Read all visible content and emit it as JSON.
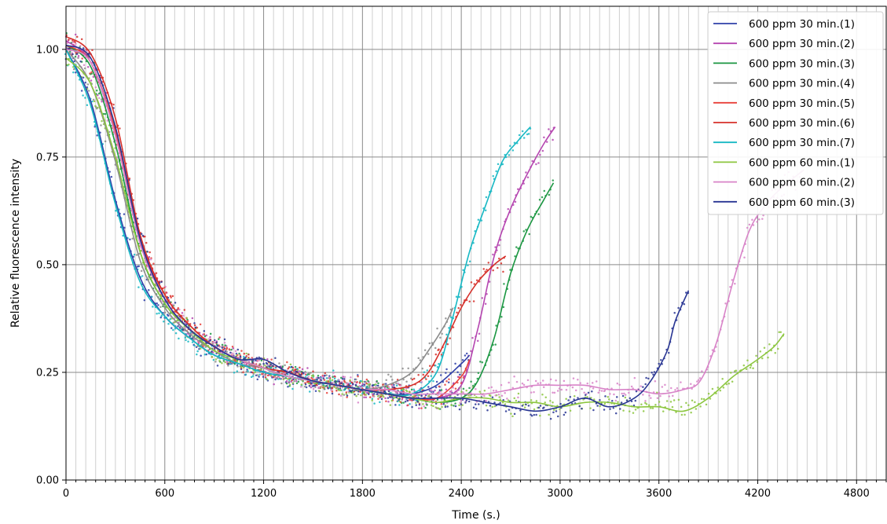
{
  "chart_data": {
    "type": "scatter",
    "xlabel": "Time (s.)",
    "ylabel": "Relative fluorescence intensity",
    "xlim": [
      0,
      4980
    ],
    "ylim": [
      0,
      1.1
    ],
    "x_ticks": [
      0,
      600,
      1200,
      1800,
      2400,
      3000,
      3600,
      4200,
      4800
    ],
    "x_tick_labels": [
      "0",
      "600",
      "1200",
      "1800",
      "2400",
      "3000",
      "3600",
      "4200",
      "4800"
    ],
    "y_ticks": [
      0,
      0.25,
      0.5,
      0.75,
      1.0
    ],
    "y_tick_labels": [
      "0.00",
      "0.25",
      "0.50",
      "0.75",
      "1.00"
    ],
    "x_minor_step": 60,
    "grid": true,
    "legend_position": "top-right",
    "series": [
      {
        "name": "600 ppm 30 min.(1)",
        "color": "#2f3fa8",
        "end_time": 2450,
        "x": [
          0,
          150,
          300,
          450,
          600,
          750,
          900,
          1050,
          1200,
          1350,
          1500,
          1650,
          1800,
          1950,
          2100,
          2250,
          2400,
          2450
        ],
        "y": [
          1.0,
          0.88,
          0.65,
          0.47,
          0.38,
          0.33,
          0.29,
          0.27,
          0.25,
          0.24,
          0.23,
          0.22,
          0.21,
          0.2,
          0.2,
          0.22,
          0.27,
          0.29
        ]
      },
      {
        "name": "600 ppm 30 min.(2)",
        "color": "#b545b0",
        "end_time": 2970,
        "x": [
          0,
          150,
          300,
          450,
          600,
          750,
          900,
          1050,
          1200,
          1350,
          1500,
          1650,
          1800,
          1950,
          2100,
          2250,
          2400,
          2500,
          2600,
          2700,
          2800,
          2900,
          2970
        ],
        "y": [
          1.02,
          0.97,
          0.8,
          0.55,
          0.42,
          0.35,
          0.31,
          0.28,
          0.26,
          0.24,
          0.23,
          0.22,
          0.21,
          0.2,
          0.19,
          0.19,
          0.22,
          0.35,
          0.52,
          0.63,
          0.71,
          0.78,
          0.82
        ]
      },
      {
        "name": "600 ppm 30 min.(3)",
        "color": "#1a9641",
        "end_time": 2960,
        "x": [
          0,
          150,
          300,
          450,
          600,
          750,
          900,
          1050,
          1200,
          1350,
          1500,
          1650,
          1800,
          1950,
          2100,
          2250,
          2400,
          2500,
          2600,
          2700,
          2800,
          2900,
          2960
        ],
        "y": [
          1.01,
          0.96,
          0.78,
          0.53,
          0.41,
          0.35,
          0.31,
          0.28,
          0.26,
          0.24,
          0.23,
          0.22,
          0.21,
          0.2,
          0.19,
          0.18,
          0.19,
          0.23,
          0.33,
          0.48,
          0.58,
          0.65,
          0.69
        ]
      },
      {
        "name": "600 ppm 30 min.(4)",
        "color": "#8c8c8c",
        "end_time": 2350,
        "x": [
          0,
          150,
          300,
          450,
          600,
          750,
          900,
          1050,
          1200,
          1350,
          1500,
          1650,
          1800,
          1950,
          2100,
          2200,
          2300,
          2350
        ],
        "y": [
          1.0,
          0.92,
          0.74,
          0.51,
          0.4,
          0.34,
          0.3,
          0.27,
          0.26,
          0.24,
          0.23,
          0.22,
          0.21,
          0.22,
          0.25,
          0.3,
          0.36,
          0.4
        ]
      },
      {
        "name": "600 ppm 30 min.(5)",
        "color": "#e8403a",
        "end_time": 2450,
        "x": [
          0,
          150,
          300,
          450,
          600,
          750,
          900,
          1050,
          1200,
          1350,
          1500,
          1650,
          1800,
          1950,
          2100,
          2250,
          2400,
          2450
        ],
        "y": [
          1.01,
          0.97,
          0.81,
          0.56,
          0.43,
          0.36,
          0.31,
          0.28,
          0.26,
          0.25,
          0.23,
          0.22,
          0.21,
          0.2,
          0.19,
          0.19,
          0.24,
          0.28
        ]
      },
      {
        "name": "600 ppm 30 min.(6)",
        "color": "#d6302a",
        "end_time": 2670,
        "x": [
          0,
          150,
          300,
          450,
          600,
          750,
          900,
          1050,
          1200,
          1350,
          1500,
          1650,
          1800,
          1950,
          2100,
          2200,
          2300,
          2400,
          2500,
          2600,
          2670
        ],
        "y": [
          1.03,
          0.99,
          0.84,
          0.57,
          0.43,
          0.36,
          0.31,
          0.28,
          0.26,
          0.25,
          0.23,
          0.22,
          0.21,
          0.21,
          0.22,
          0.25,
          0.32,
          0.4,
          0.46,
          0.5,
          0.52
        ]
      },
      {
        "name": "600 ppm 30 min.(7)",
        "color": "#17b8c4",
        "end_time": 2820,
        "x": [
          0,
          150,
          300,
          450,
          600,
          750,
          900,
          1050,
          1200,
          1350,
          1500,
          1650,
          1800,
          1950,
          2100,
          2250,
          2350,
          2450,
          2550,
          2650,
          2750,
          2820
        ],
        "y": [
          1.0,
          0.87,
          0.64,
          0.46,
          0.38,
          0.33,
          0.29,
          0.27,
          0.25,
          0.24,
          0.23,
          0.22,
          0.21,
          0.2,
          0.2,
          0.25,
          0.38,
          0.53,
          0.64,
          0.74,
          0.79,
          0.82
        ]
      },
      {
        "name": "600 ppm 60 min.(1)",
        "color": "#8cc63f",
        "end_time": 4360,
        "x": [
          0,
          150,
          300,
          450,
          600,
          750,
          900,
          1050,
          1200,
          1350,
          1500,
          1650,
          1800,
          1950,
          2100,
          2250,
          2400,
          2550,
          2700,
          2850,
          3000,
          3150,
          3300,
          3450,
          3600,
          3750,
          3900,
          4050,
          4200,
          4300,
          4360
        ],
        "y": [
          0.98,
          0.92,
          0.75,
          0.53,
          0.41,
          0.35,
          0.3,
          0.28,
          0.26,
          0.24,
          0.23,
          0.22,
          0.21,
          0.2,
          0.19,
          0.18,
          0.19,
          0.19,
          0.18,
          0.18,
          0.17,
          0.18,
          0.18,
          0.17,
          0.17,
          0.16,
          0.19,
          0.24,
          0.28,
          0.31,
          0.34
        ]
      },
      {
        "name": "600 ppm 60 min.(2)",
        "color": "#d884c8",
        "end_time": 4480,
        "x": [
          0,
          150,
          300,
          450,
          600,
          750,
          900,
          1050,
          1200,
          1350,
          1500,
          1650,
          1800,
          1950,
          2100,
          2250,
          2400,
          2550,
          2700,
          2850,
          3000,
          3150,
          3300,
          3450,
          3600,
          3750,
          3850,
          3950,
          4050,
          4150,
          4250,
          4350,
          4480
        ],
        "y": [
          1.0,
          0.97,
          0.8,
          0.55,
          0.42,
          0.35,
          0.31,
          0.28,
          0.26,
          0.24,
          0.23,
          0.22,
          0.21,
          0.21,
          0.2,
          0.2,
          0.2,
          0.2,
          0.21,
          0.22,
          0.22,
          0.22,
          0.21,
          0.21,
          0.2,
          0.21,
          0.23,
          0.32,
          0.46,
          0.58,
          0.64,
          0.68,
          0.72
        ]
      },
      {
        "name": "600 ppm 60 min.(3)",
        "color": "#283593",
        "end_time": 3780,
        "x": [
          0,
          150,
          300,
          450,
          600,
          750,
          900,
          1050,
          1200,
          1350,
          1500,
          1650,
          1800,
          1950,
          2100,
          2250,
          2400,
          2550,
          2700,
          2850,
          3000,
          3150,
          3300,
          3450,
          3550,
          3650,
          3700,
          3780
        ],
        "y": [
          1.01,
          0.98,
          0.82,
          0.56,
          0.42,
          0.35,
          0.31,
          0.28,
          0.28,
          0.25,
          0.23,
          0.22,
          0.21,
          0.2,
          0.19,
          0.19,
          0.19,
          0.18,
          0.17,
          0.16,
          0.17,
          0.19,
          0.17,
          0.19,
          0.23,
          0.3,
          0.37,
          0.44
        ]
      }
    ]
  }
}
